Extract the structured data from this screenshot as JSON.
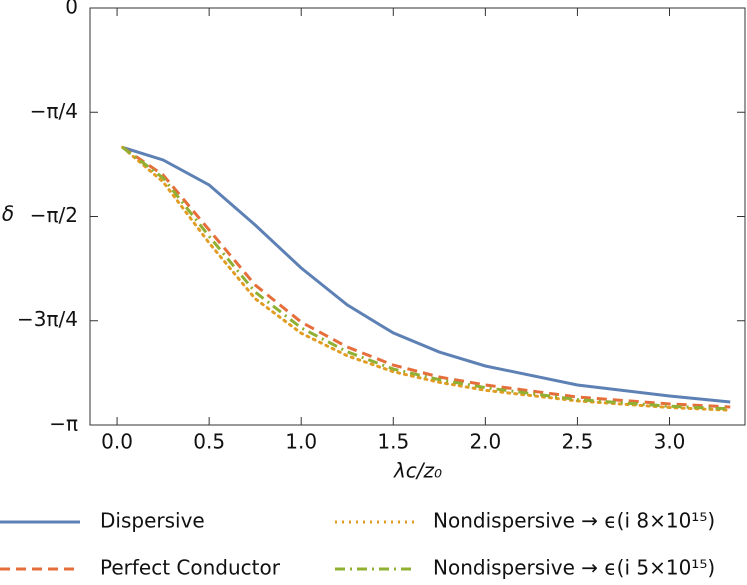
{
  "chart_data": {
    "type": "line",
    "xlabel": "λc/z₀",
    "ylabel": "δ",
    "x": [
      0.03,
      0.25,
      0.5,
      0.75,
      1.0,
      1.25,
      1.5,
      1.75,
      2.0,
      2.5,
      3.0,
      3.33
    ],
    "series": [
      {
        "name": "Dispersive",
        "color": "#5e81b5",
        "style": "solid",
        "values": [
          -1.05,
          -1.145,
          -1.333,
          -1.635,
          -1.959,
          -2.237,
          -2.448,
          -2.592,
          -2.697,
          -2.84,
          -2.923,
          -2.968
        ]
      },
      {
        "name": "Perfect Conductor",
        "color": "#e56e3b",
        "style": "dashed",
        "values": [
          -1.05,
          -1.258,
          -1.672,
          -2.087,
          -2.366,
          -2.554,
          -2.69,
          -2.78,
          -2.84,
          -2.931,
          -2.983,
          -3.006
        ]
      },
      {
        "name": "Nondispersive → ϵ(i 8×10¹⁵)",
        "color": "#e19c24",
        "style": "dotted",
        "values": [
          -1.05,
          -1.31,
          -1.77,
          -2.19,
          -2.45,
          -2.62,
          -2.74,
          -2.82,
          -2.88,
          -2.96,
          -3.01,
          -3.03
        ]
      },
      {
        "name": "Nondispersive → ϵ(i 5×10¹⁵)",
        "color": "#8fb032",
        "style": "dashdot",
        "values": [
          -1.05,
          -1.28,
          -1.72,
          -2.14,
          -2.41,
          -2.59,
          -2.72,
          -2.8,
          -2.86,
          -2.95,
          -3.0,
          -3.02
        ]
      }
    ],
    "xlim": [
      -0.147,
      3.41
    ],
    "ylim": [
      -3.14159,
      0
    ],
    "xticks": [
      {
        "value": 0,
        "label": "0.0"
      },
      {
        "value": 0.5,
        "label": "0.5"
      },
      {
        "value": 1,
        "label": "1.0"
      },
      {
        "value": 1.5,
        "label": "1.5"
      },
      {
        "value": 2,
        "label": "2.0"
      },
      {
        "value": 2.5,
        "label": "2.5"
      },
      {
        "value": 3,
        "label": "3.0"
      }
    ],
    "yticks": [
      {
        "value": -3.14159,
        "label": "−π"
      },
      {
        "value": -2.35619,
        "label": "−3π/4"
      },
      {
        "value": -1.5708,
        "label": "−π/2"
      },
      {
        "value": -0.7854,
        "label": "−π/4"
      },
      0
    ],
    "legend": "bottom"
  }
}
